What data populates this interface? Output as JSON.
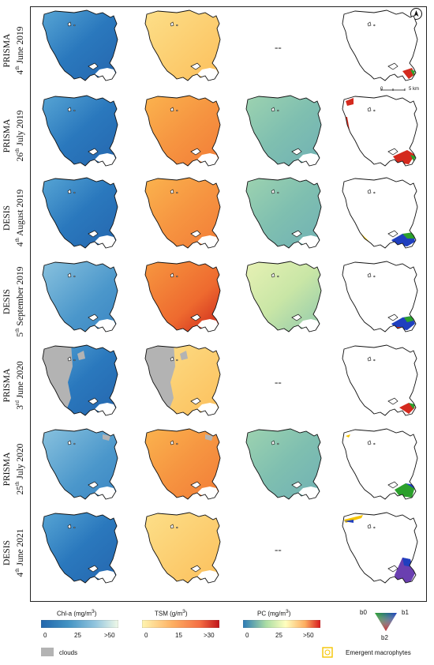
{
  "rows": [
    {
      "sensor": "PRISMA",
      "day": "4",
      "sup": "th",
      "rest": " June 2019",
      "pc": false
    },
    {
      "sensor": "PRISMA",
      "day": "26",
      "sup": "th",
      "rest": " July 2019",
      "pc": true
    },
    {
      "sensor": "DESIS",
      "day": "4",
      "sup": "th",
      "rest": " August 2019",
      "pc": true
    },
    {
      "sensor": "DESIS",
      "day": "5",
      "sup": "th",
      "rest": " September 2019",
      "pc": true
    },
    {
      "sensor": "PRISMA",
      "day": "3",
      "sup": "rd",
      "rest": " June 2020",
      "pc": false
    },
    {
      "sensor": "PRISMA",
      "day": "25",
      "sup": "th",
      "rest": " July 2020",
      "pc": true
    },
    {
      "sensor": "DESIS",
      "day": "4",
      "sup": "th",
      "rest": " June 2021",
      "pc": false
    }
  ],
  "missing_marker": "--",
  "scale": {
    "zero": "0",
    "five": "5 km"
  },
  "legend": {
    "chla": {
      "title_main": "Chl-a (mg/m",
      "title_sup": "3",
      "title_end": ")",
      "ticks": [
        "0",
        "25",
        ">50"
      ]
    },
    "tsm": {
      "title_main": "TSM (g/m",
      "title_sup": "3",
      "title_end": ")",
      "ticks": [
        "0",
        "15",
        ">30"
      ]
    },
    "pc": {
      "title_main": "PC (mg/m",
      "title_sup": "3",
      "title_end": ")",
      "ticks": [
        "0",
        "25",
        ">50"
      ]
    },
    "clouds": "clouds",
    "macrophytes": "Emergent macrophytes",
    "triangle": {
      "b0": "b0",
      "b1": "b1",
      "b2": "b2"
    }
  },
  "colors": {
    "chla": [
      "#2166ac",
      "#4393c3",
      "#92c5de",
      "#f0f9e8"
    ],
    "tsm": [
      "#fff5b0",
      "#fdae61",
      "#f46d43",
      "#d7191c"
    ],
    "pc": [
      "#2c7bb6",
      "#abdda4",
      "#ffffbf",
      "#fdae61",
      "#d7191c"
    ],
    "clouds": "#b3b3b3",
    "macrophytes": "#f5c400"
  }
}
